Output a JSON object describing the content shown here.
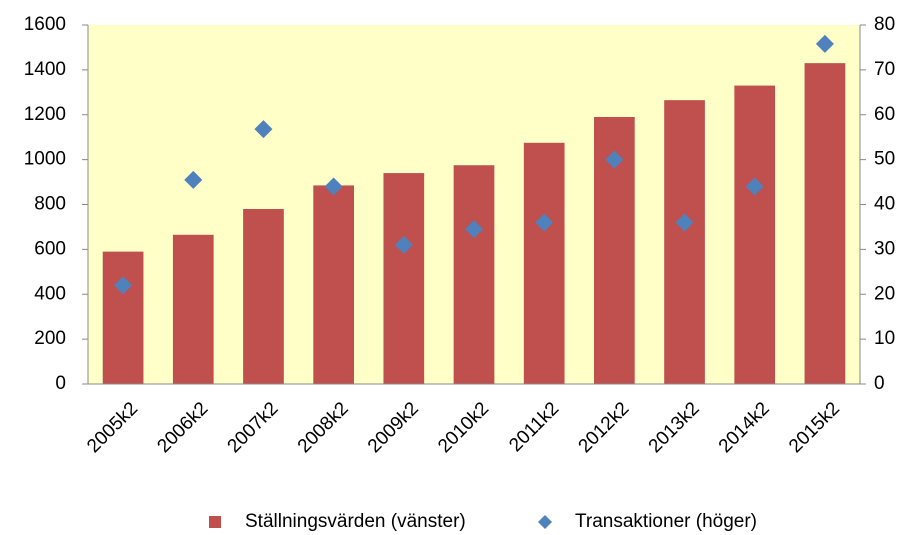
{
  "chart_data": {
    "type": "bar_scatter",
    "categories": [
      "2005k2",
      "2006k2",
      "2007k2",
      "2008k2",
      "2009k2",
      "2010k2",
      "2011k2",
      "2012k2",
      "2013k2",
      "2014k2",
      "2015k2"
    ],
    "series": [
      {
        "name": "Ställningsvärden (vänster)",
        "color": "#c0504d",
        "type": "bar",
        "values": [
          590,
          665,
          780,
          885,
          940,
          975,
          1075,
          1190,
          1265,
          1330,
          1430
        ]
      },
      {
        "name": "Transaktioner (höger)",
        "color": "#4f81bd",
        "type": "scatter",
        "axis": "y2",
        "values": [
          22,
          45.5,
          56.8,
          44,
          31,
          34.5,
          36,
          50,
          36,
          44,
          75.8
        ]
      }
    ],
    "ylim": [
      0,
      1600
    ],
    "yticks": [
      0,
      200,
      400,
      600,
      800,
      1000,
      1200,
      1400,
      1600
    ],
    "y2lim": [
      0,
      80
    ],
    "y2ticks": [
      0,
      10,
      20,
      30,
      40,
      50,
      60,
      70,
      80
    ],
    "plot_background": "#ffffc8",
    "legend": "bottom"
  }
}
